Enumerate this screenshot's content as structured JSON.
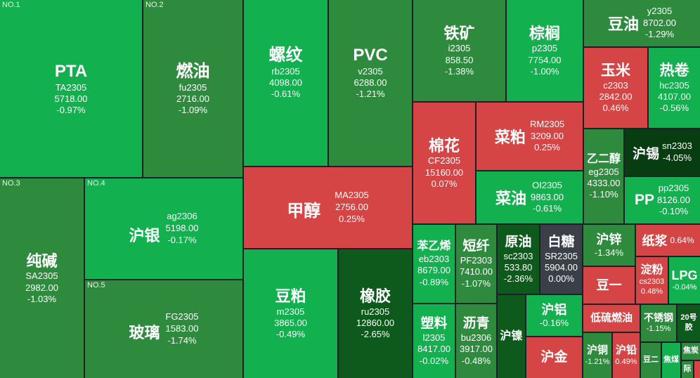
{
  "colors": {
    "up": "#d64545",
    "down_light": "#12b04e",
    "down_mid": "#2e8b3e",
    "down_dark": "#0d5a1c",
    "down_deepest": "#083d12",
    "flat": "#3a3f48",
    "background": "#1c2129"
  },
  "ranks": {
    "r1": "NO.1",
    "r2": "NO.2",
    "r3": "NO.3",
    "r4": "NO.4",
    "r5": "NO.5"
  },
  "tiles": {
    "pta": {
      "name": "PTA",
      "code": "TA2305",
      "price": "5718.00",
      "change": "-0.97%"
    },
    "fuel": {
      "name": "燃油",
      "code": "fu2305",
      "price": "2716.00",
      "change": "-1.09%"
    },
    "rebar": {
      "name": "螺纹",
      "code": "rb2305",
      "price": "4098.00",
      "change": "-0.61%"
    },
    "pvc": {
      "name": "PVC",
      "code": "v2305",
      "price": "6288.00",
      "change": "-1.21%"
    },
    "iron": {
      "name": "铁矿",
      "code": "i2305",
      "price": "858.50",
      "change": "-1.38%"
    },
    "palm": {
      "name": "棕榈",
      "code": "p2305",
      "price": "7754.00",
      "change": "-1.00%"
    },
    "soyoil": {
      "name": "豆油",
      "code": "y2305",
      "price": "8702.00",
      "change": "-1.29%"
    },
    "corn": {
      "name": "玉米",
      "code": "c2303",
      "price": "2842.00",
      "change": "0.46%"
    },
    "hotcoil": {
      "name": "热卷",
      "code": "hc2305",
      "price": "4107.00",
      "change": "-0.56%"
    },
    "cotton": {
      "name": "棉花",
      "code": "CF2305",
      "price": "15160.00",
      "change": "0.07%"
    },
    "rapemeal": {
      "name": "菜粕",
      "code": "RM2305",
      "price": "3209.00",
      "change": "0.25%"
    },
    "eg": {
      "name": "乙二醇",
      "code": "eg2305",
      "price": "4333.00",
      "change": "-1.10%"
    },
    "tin": {
      "name": "沪锡",
      "code": "sn2303",
      "change": "-4.05%"
    },
    "rapeoil": {
      "name": "菜油",
      "code": "OI2305",
      "price": "9863.00",
      "change": "-0.61%"
    },
    "pp": {
      "name": "PP",
      "code": "pp2305",
      "price": "8126.00",
      "change": "-0.10%"
    },
    "methanol": {
      "name": "甲醇",
      "code": "MA2305",
      "price": "2756.00",
      "change": "0.25%"
    },
    "soda": {
      "name": "纯碱",
      "code": "SA2305",
      "price": "2982.00",
      "change": "-1.03%"
    },
    "silver": {
      "name": "沪银",
      "code": "ag2306",
      "price": "5198.00",
      "change": "-0.17%"
    },
    "glass": {
      "name": "玻璃",
      "code": "FG2305",
      "price": "1583.00",
      "change": "-1.74%"
    },
    "soymeal": {
      "name": "豆粕",
      "code": "m2305",
      "price": "3865.00",
      "change": "-0.49%"
    },
    "rubber": {
      "name": "橡胶",
      "code": "ru2305",
      "price": "12860.00",
      "change": "-2.65%"
    },
    "styrene": {
      "name": "苯乙烯",
      "code": "eb2303",
      "price": "8679.00",
      "change": "-0.89%"
    },
    "shortfiber": {
      "name": "短纤",
      "code": "PF2303",
      "price": "7410.00",
      "change": "-1.07%"
    },
    "crude": {
      "name": "原油",
      "code": "sc2303",
      "price": "533.80",
      "change": "-2.36%"
    },
    "sugar": {
      "name": "白糖",
      "code": "SR2305",
      "price": "5904.00",
      "change": "0.00%"
    },
    "zinc": {
      "name": "沪锌",
      "change": "-1.34%"
    },
    "pulp": {
      "name": "纸浆",
      "change": "0.64%"
    },
    "starch": {
      "name": "淀粉",
      "code": "cs2303",
      "change": "0.48%"
    },
    "lpg": {
      "name": "LPG",
      "change": "-0.04%"
    },
    "soy1": {
      "name": "豆一"
    },
    "plastic": {
      "name": "塑料",
      "code": "l2305",
      "price": "8417.00",
      "change": "-0.02%"
    },
    "bitumen": {
      "name": "沥青",
      "code": "bu2306",
      "price": "3917.00",
      "change": "-0.48%"
    },
    "nickel": {
      "name": "沪镍"
    },
    "aluminum": {
      "name": "沪铝",
      "change": "-0.16%"
    },
    "lsfo": {
      "name": "低硫燃油"
    },
    "stainless": {
      "name": "不锈钢",
      "change": "-1.15%"
    },
    "no20": {
      "name": "20号胶"
    },
    "gold": {
      "name": "沪金"
    },
    "copper": {
      "name": "沪铜",
      "change": "-1.21%"
    },
    "lead": {
      "name": "沪铅",
      "change": "0.49%"
    },
    "soy2": {
      "name": "豆二"
    },
    "coke": {
      "name": "焦煤"
    },
    "coal": {
      "name": "焦炭"
    },
    "intl": {
      "name": "际"
    }
  }
}
